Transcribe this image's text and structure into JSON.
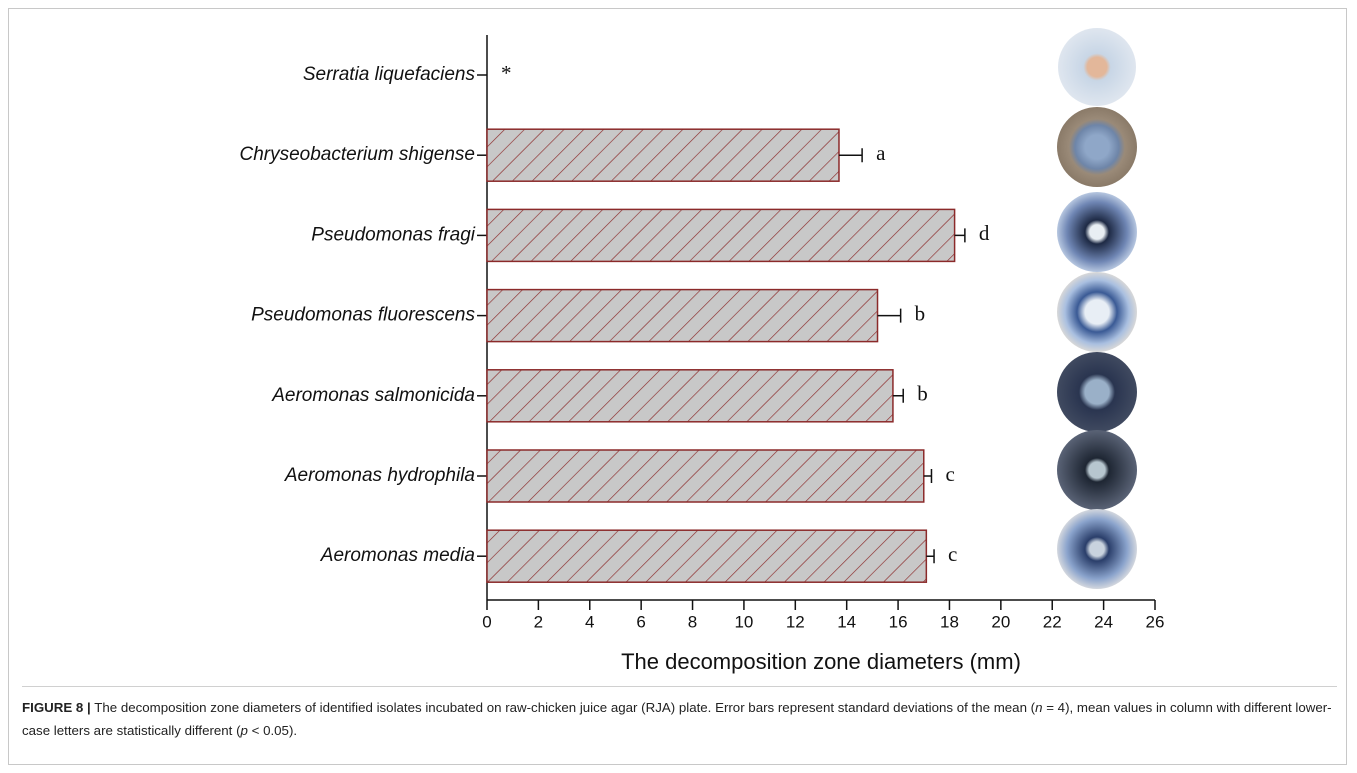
{
  "chart_data": {
    "type": "hbar",
    "categories": [
      "Serratia liquefaciens",
      "Chryseobacterium shigense",
      "Pseudomonas fragi",
      "Pseudomonas fluorescens",
      "Aeromonas salmonicida",
      "Aeromonas hydrophila",
      "Aeromonas media"
    ],
    "values": [
      0,
      13.7,
      18.2,
      15.2,
      15.8,
      17.0,
      17.1
    ],
    "errors": [
      null,
      0.9,
      0.4,
      0.9,
      0.4,
      0.3,
      0.3
    ],
    "annotations": [
      "*",
      "a",
      "d",
      "b",
      "b",
      "c",
      "c"
    ],
    "color": "#c8c8c8",
    "hatch_color": "#8b2a2a",
    "xlabel": "The decomposition zone diameters (mm)",
    "xlim": [
      0,
      26
    ],
    "xticks": [
      0,
      2,
      4,
      6,
      8,
      10,
      12,
      14,
      16,
      18,
      20,
      22,
      24,
      26
    ]
  },
  "caption": {
    "label": "FIGURE 8 |",
    "parts": [
      "The decomposition zone diameters of identified isolates incubated on raw-chicken juice agar (RJA) plate. Error bars represent standard deviations of the mean (",
      "n",
      " = 4), mean values in column with different lower-case letters are statistically different (",
      "p",
      " < 0.05)."
    ]
  }
}
